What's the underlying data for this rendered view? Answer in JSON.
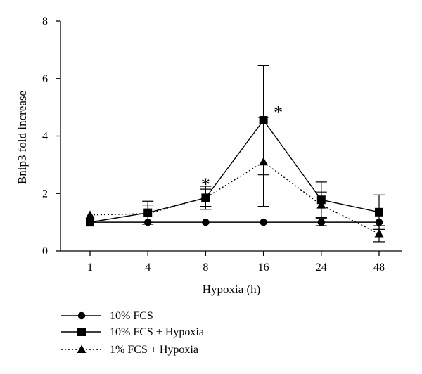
{
  "chart_data": {
    "type": "line",
    "xlabel": "Hypoxia (h)",
    "ylabel": "Bnip3 fold increase",
    "categories": [
      "1",
      "4",
      "8",
      "16",
      "24",
      "48"
    ],
    "ylim": [
      0,
      8
    ],
    "yticks": [
      "0",
      "2",
      "4",
      "6",
      "8"
    ],
    "legend_position": "bottom-left",
    "grid": false,
    "series": [
      {
        "name": "10% FCS",
        "marker": "circle",
        "line": "solid",
        "color": "#000000",
        "values": [
          1.0,
          1.0,
          1.0,
          1.0,
          1.0,
          1.0
        ],
        "err": [
          0,
          0,
          0,
          0,
          0.12,
          0.0
        ]
      },
      {
        "name": "10% FCS + Hypoxia",
        "marker": "square",
        "line": "solid",
        "color": "#000000",
        "values": [
          1.0,
          1.33,
          1.85,
          4.55,
          1.78,
          1.35
        ],
        "err": [
          0,
          0.4,
          0.4,
          1.9,
          0.62,
          0.6
        ]
      },
      {
        "name": "1% FCS + Hypoxia",
        "marker": "triangle",
        "line": "dotted",
        "color": "#000000",
        "values": [
          1.25,
          1.3,
          1.85,
          3.1,
          1.6,
          0.6
        ],
        "err": [
          0,
          0.3,
          0.3,
          1.55,
          0.45,
          0.28
        ]
      }
    ],
    "annotations": [
      {
        "text": "*",
        "x": "8",
        "y": 2.45
      },
      {
        "text": "*",
        "x": "16",
        "y": 4.95
      }
    ]
  }
}
